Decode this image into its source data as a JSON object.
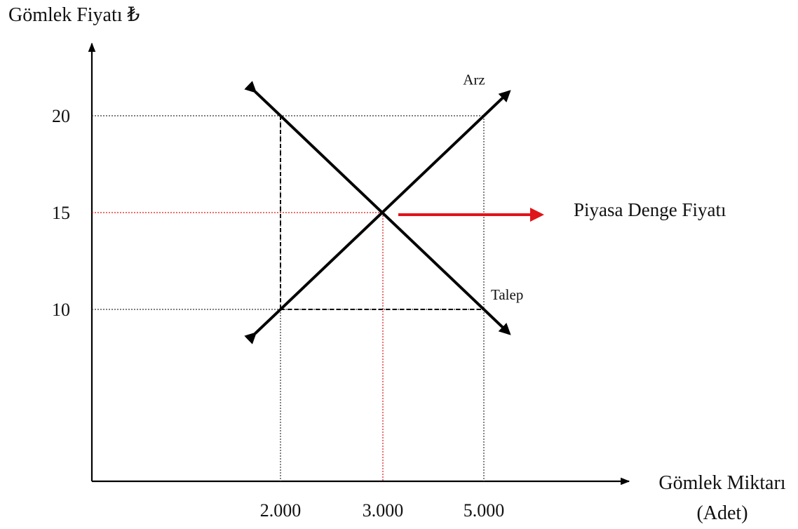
{
  "chart_data": {
    "type": "line",
    "title": "",
    "ylabel": "Gömlek Fiyatı ₺",
    "xlabel_line1": "Gömlek Miktarı",
    "xlabel_line2": "(Adet)",
    "x_ticks": [
      {
        "label": "2.000",
        "value": 2000
      },
      {
        "label": "3.000",
        "value": 3000
      },
      {
        "label": "5.000",
        "value": 5000
      }
    ],
    "y_ticks": [
      {
        "label": "20",
        "value": 20
      },
      {
        "label": "15",
        "value": 15
      },
      {
        "label": "10",
        "value": 10
      }
    ],
    "series": [
      {
        "name": "Arz",
        "points": [
          [
            2000,
            10
          ],
          [
            3000,
            15
          ],
          [
            5000,
            20
          ]
        ],
        "color": "#000000"
      },
      {
        "name": "Talep",
        "points": [
          [
            2000,
            20
          ],
          [
            3000,
            15
          ],
          [
            5000,
            10
          ]
        ],
        "color": "#000000"
      }
    ],
    "equilibrium": {
      "x": 3000,
      "y": 15,
      "color": "#e0141b"
    },
    "annotation": {
      "text": "Piyasa Denge Fiyatı",
      "color": "#e0141b"
    },
    "grid": false
  }
}
